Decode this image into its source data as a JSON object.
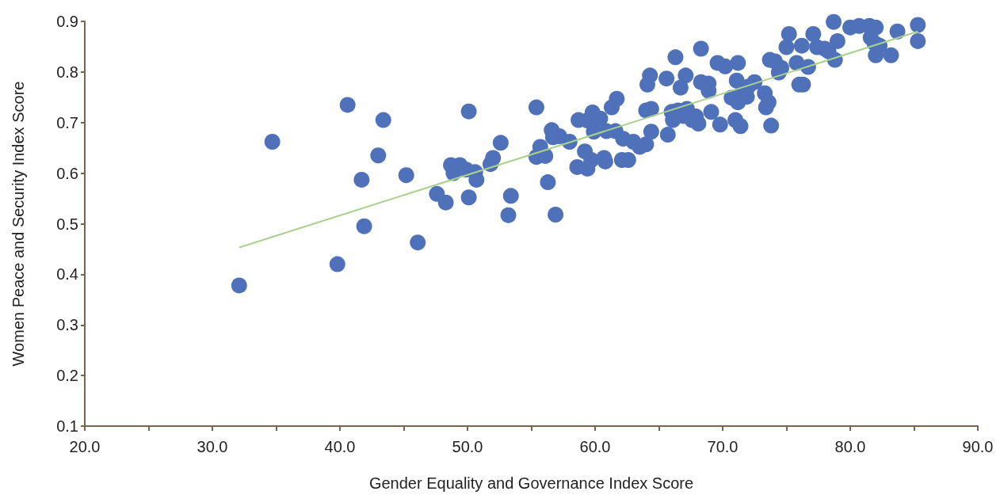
{
  "chart_data": {
    "type": "scatter",
    "xlabel": "Gender Equality and Governance Index Score",
    "ylabel": "Women Peace and Security Index Score",
    "xlim": [
      20,
      90
    ],
    "ylim": [
      0.1,
      0.9
    ],
    "xticks": [
      {
        "value": 20,
        "label": "20.0"
      },
      {
        "value": 25,
        "label": null
      },
      {
        "value": 30,
        "label": "30.0"
      },
      {
        "value": 35,
        "label": null
      },
      {
        "value": 40,
        "label": "40.0"
      },
      {
        "value": 45,
        "label": null
      },
      {
        "value": 50,
        "label": "50.0"
      },
      {
        "value": 55,
        "label": null
      },
      {
        "value": 60,
        "label": "60.0"
      },
      {
        "value": 65,
        "label": null
      },
      {
        "value": 70,
        "label": "70.0"
      },
      {
        "value": 75,
        "label": null
      },
      {
        "value": 80,
        "label": "80.0"
      },
      {
        "value": 85,
        "label": null
      },
      {
        "value": 90,
        "label": "90.0"
      }
    ],
    "yticks": [
      0.1,
      0.2,
      0.3,
      0.4,
      0.5,
      0.6,
      0.7,
      0.8,
      0.9
    ],
    "grid": false,
    "series": [
      {
        "marker": "circle",
        "color": "#4e71b9",
        "x": [
          32.1,
          34.7,
          39.8,
          40.6,
          41.7,
          41.9,
          43.0,
          43.4,
          45.2,
          46.1,
          47.6,
          48.3,
          48.7,
          48.9,
          49.4,
          49.9,
          50.1,
          50.1,
          50.6,
          50.7,
          51.8,
          52.0,
          52.6,
          53.2,
          53.4,
          55.4,
          55.4,
          55.7,
          56.1,
          56.3,
          56.6,
          56.7,
          56.9,
          57.2,
          58.0,
          58.7,
          58.6,
          59.2,
          59.4,
          59.4,
          59.7,
          59.8,
          59.9,
          60.4,
          60.7,
          60.8,
          60.9,
          61.3,
          61.6,
          61.7,
          62.2,
          62.1,
          62.6,
          63.0,
          63.5,
          64.0,
          64.0,
          64.1,
          64.3,
          64.4,
          64.4,
          65.6,
          65.7,
          66.0,
          66.1,
          66.3,
          66.5,
          66.7,
          66.9,
          67.1,
          67.2,
          67.6,
          67.9,
          68.1,
          68.3,
          68.3,
          68.9,
          68.9,
          69.1,
          69.6,
          69.8,
          70.2,
          70.7,
          71.0,
          71.1,
          71.2,
          71.2,
          71.4,
          71.6,
          71.9,
          72.0,
          72.5,
          73.3,
          73.4,
          73.6,
          73.8,
          73.7,
          74.1,
          74.4,
          74.6,
          75.0,
          75.2,
          75.8,
          76.0,
          76.3,
          76.2,
          76.7,
          77.1,
          77.4,
          78.0,
          78.7,
          78.3,
          78.8,
          79.0,
          80.0,
          80.7,
          81.5,
          81.6,
          81.9,
          82.0,
          82.0,
          82.3,
          83.2,
          83.7,
          85.3,
          85.3
        ],
        "values": [
          0.378,
          0.662,
          0.42,
          0.735,
          0.587,
          0.495,
          0.635,
          0.705,
          0.596,
          0.463,
          0.559,
          0.542,
          0.616,
          0.6,
          0.616,
          0.607,
          0.722,
          0.552,
          0.602,
          0.587,
          0.618,
          0.63,
          0.66,
          0.517,
          0.555,
          0.73,
          0.632,
          0.652,
          0.634,
          0.582,
          0.685,
          0.671,
          0.518,
          0.673,
          0.662,
          0.705,
          0.612,
          0.643,
          0.704,
          0.609,
          0.626,
          0.72,
          0.682,
          0.708,
          0.63,
          0.623,
          0.683,
          0.73,
          0.683,
          0.747,
          0.668,
          0.626,
          0.626,
          0.662,
          0.652,
          0.657,
          0.724,
          0.775,
          0.793,
          0.727,
          0.682,
          0.787,
          0.676,
          0.721,
          0.705,
          0.829,
          0.724,
          0.769,
          0.713,
          0.793,
          0.727,
          0.705,
          0.712,
          0.698,
          0.846,
          0.78,
          0.777,
          0.763,
          0.721,
          0.818,
          0.696,
          0.811,
          0.749,
          0.705,
          0.783,
          0.818,
          0.74,
          0.693,
          0.763,
          0.751,
          0.771,
          0.78,
          0.758,
          0.73,
          0.74,
          0.694,
          0.824,
          0.821,
          0.799,
          0.808,
          0.849,
          0.875,
          0.818,
          0.775,
          0.775,
          0.852,
          0.81,
          0.875,
          0.849,
          0.846,
          0.899,
          0.841,
          0.824,
          0.861,
          0.888,
          0.891,
          0.891,
          0.868,
          0.857,
          0.888,
          0.833,
          0.852,
          0.833,
          0.88,
          0.893,
          0.861
        ]
      },
      {
        "type": "line",
        "marker": "none",
        "color": "#a9d18e",
        "x": [
          32.1,
          85.3
        ],
        "values": [
          0.453,
          0.88
        ]
      }
    ]
  }
}
